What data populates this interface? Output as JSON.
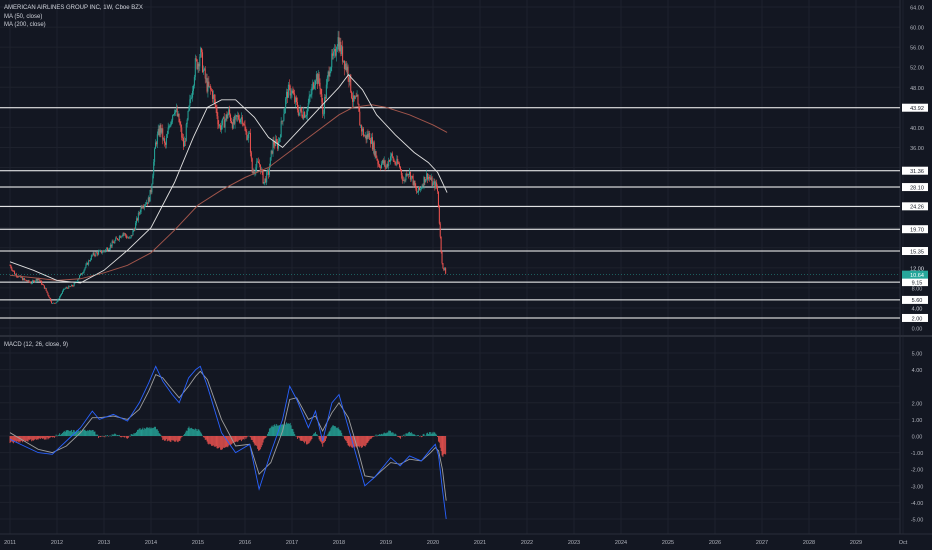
{
  "header": {
    "symbol_title": "AMERICAN AIRLINES GROUP INC, 1W, Cboe BZX",
    "ma50_label": "MA (50, close)",
    "ma200_label": "MA (200, close)",
    "macd_label": "MACD (12, 26, close, 9)"
  },
  "colors": {
    "background": "#131722",
    "grid": "#1e222d",
    "up_candle": "#26a69a",
    "down_candle": "#ef5350",
    "ma50": "#e0e0e0",
    "ma200": "#a1554b",
    "macd_line": "#2962ff",
    "signal_line": "#9e9e9e",
    "hist_up": "#26a69a",
    "hist_down": "#ef5350",
    "level_lines": "#ffffff",
    "current_price_label": "#26a69a"
  },
  "chart_data": [
    {
      "type": "candlestick",
      "title": "AMERICAN AIRLINES GROUP INC, 1W, Cboe BZX",
      "x_ticks": [
        "2011",
        "2012",
        "2013",
        "2014",
        "2015",
        "2016",
        "2017",
        "2018",
        "2019",
        "2020",
        "2021",
        "2022",
        "2023",
        "2024",
        "2025",
        "2026",
        "2027",
        "2028",
        "2029",
        "Oct"
      ],
      "y_ticks": [
        "64.00",
        "60.00",
        "56.00",
        "52.00",
        "48.00",
        "40.00",
        "36.00",
        "12.00",
        "8.00",
        "4.00",
        "0.00"
      ],
      "ylim": [
        0,
        64
      ],
      "price_anchors": [
        [
          2011.0,
          12.5
        ],
        [
          2011.1,
          10.8
        ],
        [
          2011.3,
          9.6
        ],
        [
          2011.45,
          9.0
        ],
        [
          2011.6,
          9.9
        ],
        [
          2011.75,
          7.8
        ],
        [
          2011.9,
          4.8
        ],
        [
          2012.0,
          5.3
        ],
        [
          2012.15,
          7.8
        ],
        [
          2012.35,
          8.5
        ],
        [
          2012.55,
          11.3
        ],
        [
          2012.75,
          14.5
        ],
        [
          2012.9,
          15.1
        ],
        [
          2013.0,
          15.3
        ],
        [
          2013.2,
          17.0
        ],
        [
          2013.4,
          19.0
        ],
        [
          2013.55,
          17.6
        ],
        [
          2013.65,
          20.0
        ],
        [
          2013.8,
          24.5
        ],
        [
          2013.95,
          25.5
        ],
        [
          2014.0,
          27.5
        ],
        [
          2014.1,
          37.0
        ],
        [
          2014.2,
          40.0
        ],
        [
          2014.3,
          36.0
        ],
        [
          2014.4,
          41.0
        ],
        [
          2014.5,
          44.0
        ],
        [
          2014.6,
          41.0
        ],
        [
          2014.7,
          36.0
        ],
        [
          2014.8,
          43.0
        ],
        [
          2014.88,
          48.0
        ],
        [
          2014.94,
          52.5
        ],
        [
          2015.0,
          53.0
        ],
        [
          2015.05,
          55.0
        ],
        [
          2015.12,
          51.0
        ],
        [
          2015.2,
          48.0
        ],
        [
          2015.3,
          47.0
        ],
        [
          2015.4,
          43.0
        ],
        [
          2015.45,
          40.0
        ],
        [
          2015.55,
          41.0
        ],
        [
          2015.65,
          43.0
        ],
        [
          2015.75,
          40.5
        ],
        [
          2015.85,
          42.0
        ],
        [
          2015.95,
          42.0
        ],
        [
          2016.0,
          39.0
        ],
        [
          2016.1,
          38.0
        ],
        [
          2016.15,
          31.0
        ],
        [
          2016.3,
          33.0
        ],
        [
          2016.4,
          29.0
        ],
        [
          2016.5,
          31.0
        ],
        [
          2016.6,
          37.0
        ],
        [
          2016.7,
          36.5
        ],
        [
          2016.82,
          43.0
        ],
        [
          2016.9,
          47.0
        ],
        [
          2016.98,
          47.5
        ],
        [
          2017.05,
          45.5
        ],
        [
          2017.15,
          43.0
        ],
        [
          2017.3,
          43.0
        ],
        [
          2017.4,
          46.5
        ],
        [
          2017.5,
          50.5
        ],
        [
          2017.6,
          48.5
        ],
        [
          2017.65,
          42.5
        ],
        [
          2017.72,
          47.0
        ],
        [
          2017.8,
          52.5
        ],
        [
          2017.9,
          54.0
        ],
        [
          2017.97,
          58.0
        ],
        [
          2018.05,
          55.0
        ],
        [
          2018.12,
          53.0
        ],
        [
          2018.2,
          51.0
        ],
        [
          2018.3,
          45.0
        ],
        [
          2018.38,
          45.5
        ],
        [
          2018.45,
          40.5
        ],
        [
          2018.55,
          38.0
        ],
        [
          2018.65,
          38.5
        ],
        [
          2018.75,
          35.5
        ],
        [
          2018.85,
          32.5
        ],
        [
          2018.95,
          33.0
        ],
        [
          2019.0,
          32.0
        ],
        [
          2019.1,
          34.5
        ],
        [
          2019.18,
          33.0
        ],
        [
          2019.28,
          32.5
        ],
        [
          2019.38,
          29.0
        ],
        [
          2019.45,
          31.5
        ],
        [
          2019.55,
          30.0
        ],
        [
          2019.65,
          27.0
        ],
        [
          2019.72,
          27.5
        ],
        [
          2019.8,
          29.5
        ],
        [
          2019.88,
          30.5
        ],
        [
          2019.95,
          29.5
        ],
        [
          2020.0,
          28.5
        ],
        [
          2020.04,
          28.7
        ],
        [
          2020.08,
          28.0
        ],
        [
          2020.1,
          27.0
        ],
        [
          2020.13,
          22.0
        ],
        [
          2020.16,
          17.0
        ],
        [
          2020.19,
          13.5
        ],
        [
          2020.22,
          11.0
        ],
        [
          2020.25,
          12.0
        ],
        [
          2020.28,
          10.6
        ]
      ],
      "ma50_points": [
        [
          2011.0,
          13.2
        ],
        [
          2011.5,
          11.5
        ],
        [
          2012.0,
          9.5
        ],
        [
          2012.5,
          9.0
        ],
        [
          2013.0,
          11.5
        ],
        [
          2013.5,
          15.5
        ],
        [
          2014.0,
          20.0
        ],
        [
          2014.5,
          29.0
        ],
        [
          2014.9,
          38.0
        ],
        [
          2015.2,
          44.0
        ],
        [
          2015.5,
          45.5
        ],
        [
          2015.8,
          45.5
        ],
        [
          2016.2,
          42.0
        ],
        [
          2016.5,
          38.0
        ],
        [
          2016.8,
          36.0
        ],
        [
          2017.2,
          40.0
        ],
        [
          2017.6,
          44.0
        ],
        [
          2018.0,
          48.0
        ],
        [
          2018.2,
          50.5
        ],
        [
          2018.5,
          47.5
        ],
        [
          2018.8,
          42.5
        ],
        [
          2019.2,
          38.5
        ],
        [
          2019.6,
          35.0
        ],
        [
          2019.9,
          33.0
        ],
        [
          2020.1,
          31.0
        ],
        [
          2020.3,
          27.0
        ]
      ],
      "ma200_points": [
        [
          2011.0,
          10.5
        ],
        [
          2011.5,
          10.0
        ],
        [
          2012.0,
          9.5
        ],
        [
          2012.5,
          9.8
        ],
        [
          2013.0,
          11.0
        ],
        [
          2013.5,
          12.5
        ],
        [
          2014.0,
          15.0
        ],
        [
          2014.5,
          19.5
        ],
        [
          2015.0,
          24.5
        ],
        [
          2015.5,
          27.5
        ],
        [
          2016.0,
          30.0
        ],
        [
          2016.5,
          32.0
        ],
        [
          2017.0,
          35.5
        ],
        [
          2017.5,
          39.0
        ],
        [
          2018.0,
          42.5
        ],
        [
          2018.3,
          44.0
        ],
        [
          2018.7,
          44.5
        ],
        [
          2019.0,
          44.0
        ],
        [
          2019.5,
          42.5
        ],
        [
          2020.0,
          40.5
        ],
        [
          2020.3,
          39.0
        ]
      ],
      "horizontal_levels": [
        "43.92",
        "31.36",
        "28.10",
        "24.26",
        "19.70",
        "15.35",
        "9.15",
        "5.60",
        "2.00"
      ],
      "current_price": "10.64",
      "extra_axis_labels": [
        "4.00",
        "12.00"
      ]
    },
    {
      "type": "macd",
      "title": "MACD (12, 26, close, 9)",
      "y_ticks": [
        "5.00",
        "4.00",
        "2.00",
        "1.00",
        "0.00",
        "-1.00",
        "-2.00",
        "-3.00",
        "-4.00",
        "-5.00"
      ],
      "ylim": [
        -5.4,
        5.6
      ],
      "macd_points": [
        [
          2011.0,
          -0.2
        ],
        [
          2011.3,
          -0.6
        ],
        [
          2011.6,
          -1.0
        ],
        [
          2011.9,
          -1.1
        ],
        [
          2012.2,
          -0.3
        ],
        [
          2012.5,
          0.5
        ],
        [
          2012.75,
          1.5
        ],
        [
          2012.9,
          1.0
        ],
        [
          2013.2,
          1.3
        ],
        [
          2013.5,
          0.9
        ],
        [
          2013.75,
          2.0
        ],
        [
          2013.95,
          3.2
        ],
        [
          2014.1,
          4.2
        ],
        [
          2014.25,
          3.3
        ],
        [
          2014.45,
          2.5
        ],
        [
          2014.6,
          2.0
        ],
        [
          2014.8,
          3.5
        ],
        [
          2014.95,
          4.0
        ],
        [
          2015.05,
          4.2
        ],
        [
          2015.2,
          3.0
        ],
        [
          2015.5,
          0.2
        ],
        [
          2015.8,
          -1.0
        ],
        [
          2016.1,
          -0.5
        ],
        [
          2016.3,
          -3.2
        ],
        [
          2016.55,
          -1.0
        ],
        [
          2016.8,
          1.0
        ],
        [
          2016.95,
          3.0
        ],
        [
          2017.1,
          2.2
        ],
        [
          2017.35,
          0.5
        ],
        [
          2017.5,
          1.5
        ],
        [
          2017.65,
          -0.3
        ],
        [
          2017.85,
          2.0
        ],
        [
          2018.0,
          2.5
        ],
        [
          2018.2,
          0.5
        ],
        [
          2018.4,
          -1.5
        ],
        [
          2018.55,
          -3.0
        ],
        [
          2018.75,
          -2.5
        ],
        [
          2018.9,
          -2.0
        ],
        [
          2019.1,
          -1.3
        ],
        [
          2019.3,
          -1.8
        ],
        [
          2019.5,
          -1.2
        ],
        [
          2019.75,
          -1.5
        ],
        [
          2019.95,
          -0.8
        ],
        [
          2020.05,
          -0.5
        ],
        [
          2020.12,
          -1.2
        ],
        [
          2020.2,
          -3.2
        ],
        [
          2020.28,
          -5.0
        ]
      ],
      "signal_points": [
        [
          2011.0,
          0.2
        ],
        [
          2011.3,
          -0.3
        ],
        [
          2011.6,
          -0.8
        ],
        [
          2011.9,
          -1.0
        ],
        [
          2012.2,
          -0.6
        ],
        [
          2012.5,
          0.2
        ],
        [
          2012.75,
          1.1
        ],
        [
          2012.9,
          1.1
        ],
        [
          2013.2,
          1.2
        ],
        [
          2013.5,
          1.0
        ],
        [
          2013.75,
          1.6
        ],
        [
          2013.95,
          2.7
        ],
        [
          2014.1,
          3.7
        ],
        [
          2014.25,
          3.5
        ],
        [
          2014.45,
          2.8
        ],
        [
          2014.6,
          2.3
        ],
        [
          2014.8,
          3.0
        ],
        [
          2014.95,
          3.6
        ],
        [
          2015.05,
          3.9
        ],
        [
          2015.2,
          3.4
        ],
        [
          2015.5,
          1.0
        ],
        [
          2015.8,
          -0.6
        ],
        [
          2016.1,
          -0.5
        ],
        [
          2016.3,
          -2.3
        ],
        [
          2016.55,
          -1.6
        ],
        [
          2016.8,
          0.3
        ],
        [
          2016.95,
          2.2
        ],
        [
          2017.1,
          2.3
        ],
        [
          2017.35,
          1.0
        ],
        [
          2017.5,
          1.2
        ],
        [
          2017.65,
          0.3
        ],
        [
          2017.85,
          1.4
        ],
        [
          2018.0,
          2.0
        ],
        [
          2018.2,
          1.1
        ],
        [
          2018.4,
          -0.8
        ],
        [
          2018.55,
          -2.4
        ],
        [
          2018.75,
          -2.5
        ],
        [
          2018.9,
          -2.1
        ],
        [
          2019.1,
          -1.6
        ],
        [
          2019.3,
          -1.7
        ],
        [
          2019.5,
          -1.4
        ],
        [
          2019.75,
          -1.5
        ],
        [
          2019.95,
          -1.0
        ],
        [
          2020.05,
          -0.7
        ],
        [
          2020.12,
          -0.9
        ],
        [
          2020.2,
          -2.0
        ],
        [
          2020.28,
          -3.9
        ]
      ]
    }
  ]
}
